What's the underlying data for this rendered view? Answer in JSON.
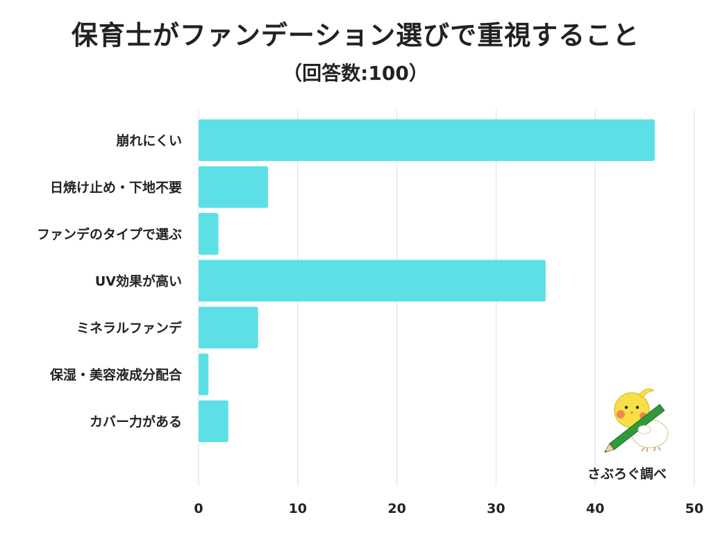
{
  "title": "保育士がファンデーション選びで重視すること",
  "subtitle": "（回答数:100）",
  "credit": "さぶろぐ調べ",
  "colors": {
    "bar": "#5ce0e6",
    "grid": "#dcdcdc",
    "text": "#222222"
  },
  "chart_data": {
    "type": "bar",
    "orientation": "horizontal",
    "title": "保育士がファンデーション選びで重視すること",
    "subtitle": "（回答数:100）",
    "categories": [
      "崩れにくい",
      "日焼け止め・下地不要",
      "ファンデのタイプで選ぶ",
      "UV効果が高い",
      "ミネラルファンデ",
      "保湿・美容液成分配合",
      "カバー力がある"
    ],
    "values": [
      46,
      7,
      2,
      35,
      6,
      1,
      3
    ],
    "xlim": [
      0,
      50
    ],
    "xticks": [
      0,
      10,
      20,
      30,
      40,
      50
    ],
    "grid": true,
    "xlabel": "",
    "ylabel": ""
  }
}
